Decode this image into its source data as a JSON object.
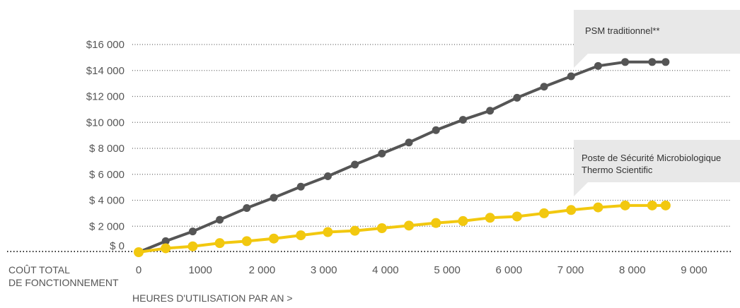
{
  "chart_data": {
    "type": "line",
    "xlabel": "HEURES D'UTILISATION PAR AN >",
    "ylabel": [
      "COÛT TOTAL",
      "DE FONCTIONNEMENT"
    ],
    "xlim": [
      0,
      9000
    ],
    "ylim": [
      0,
      16000
    ],
    "x_ticks": [
      0,
      1000,
      2000,
      3000,
      4000,
      5000,
      6000,
      7000,
      8000,
      9000
    ],
    "x_tick_labels": [
      "0",
      "1000",
      "2 000",
      "3 000",
      "4 000",
      "5 000",
      "6 000",
      "7 000",
      "8 000",
      "9 000"
    ],
    "y_ticks": [
      0,
      2000,
      4000,
      6000,
      8000,
      10000,
      12000,
      14000,
      16000
    ],
    "y_tick_labels": [
      "$      0",
      "$ 2 000",
      "$ 4 000",
      "$ 6 000",
      "$ 8 000",
      "$10 000",
      "$12 000",
      "$14 000",
      "$16 000"
    ],
    "grid": "horizontal dotted",
    "series": [
      {
        "name": "PSM traditionnel**",
        "color": "#555555",
        "x": [
          0,
          438,
          876,
          1314,
          1752,
          2190,
          2628,
          3066,
          3504,
          3942,
          4380,
          4818,
          5256,
          5694,
          6132,
          6570,
          7008,
          7446,
          7884,
          8322,
          8540
        ],
        "values": [
          0,
          850,
          1600,
          2500,
          3400,
          4200,
          5050,
          5850,
          6750,
          7600,
          8450,
          9400,
          10200,
          10900,
          11900,
          12750,
          13550,
          14350,
          14650,
          14650,
          14650
        ]
      },
      {
        "name": "Poste de Sécurité Microbiologique Thermo Scientific",
        "color": "#f2c80f",
        "x": [
          0,
          438,
          876,
          1314,
          1752,
          2190,
          2628,
          3066,
          3504,
          3942,
          4380,
          4818,
          5256,
          5694,
          6132,
          6570,
          7008,
          7446,
          7884,
          8322,
          8540
        ],
        "values": [
          0,
          300,
          450,
          700,
          850,
          1050,
          1300,
          1550,
          1650,
          1850,
          2050,
          2250,
          2400,
          2650,
          2750,
          3000,
          3250,
          3450,
          3600,
          3600,
          3600
        ]
      }
    ],
    "annotations": [
      {
        "series": 0,
        "lines": [
          "PSM traditionnel**"
        ]
      },
      {
        "series": 1,
        "lines": [
          "Poste de Sécurité Microbiologique",
          "Thermo Scientific"
        ]
      }
    ]
  }
}
